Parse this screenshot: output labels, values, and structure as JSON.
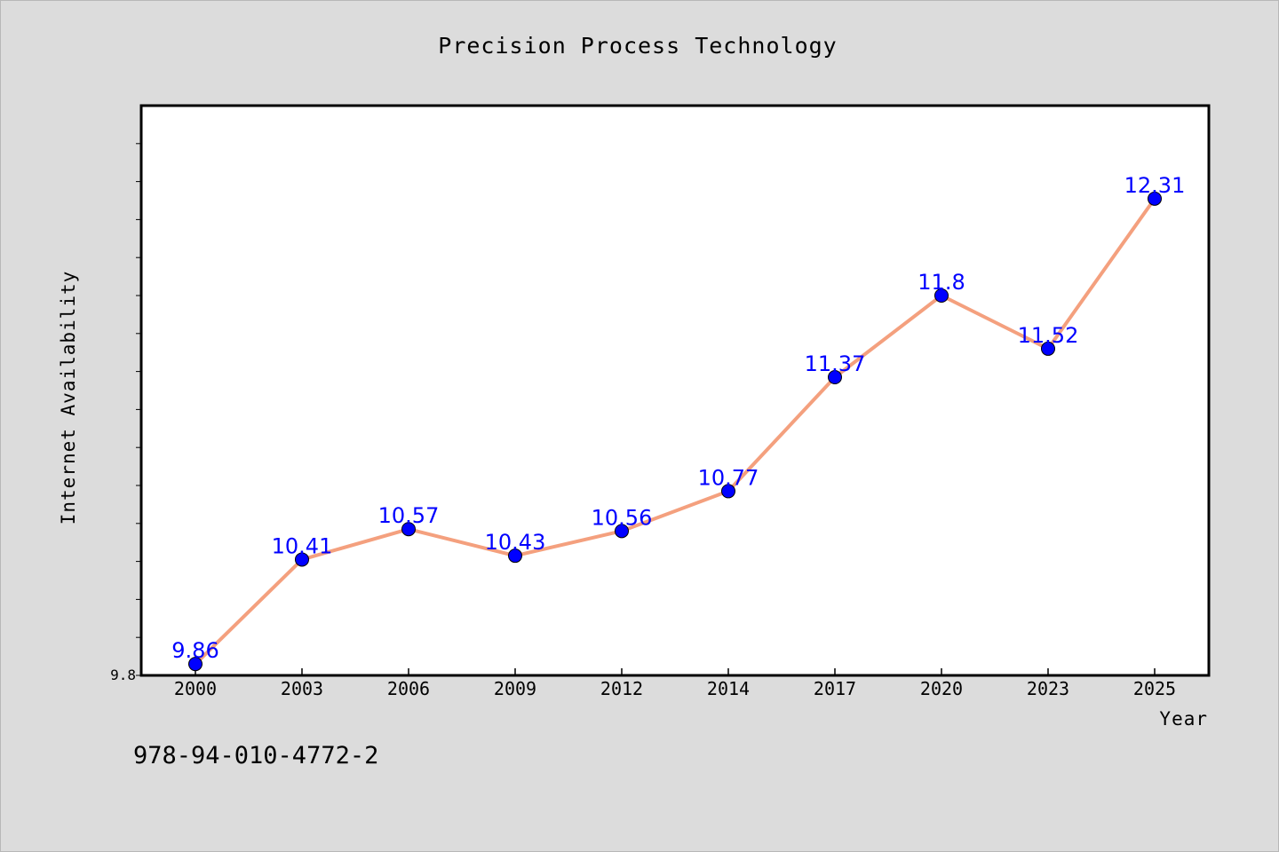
{
  "chart_data": {
    "type": "line",
    "title": "Precision Process Technology",
    "xlabel": "Year",
    "ylabel": "Internet Availability",
    "categories": [
      "2000",
      "2003",
      "2006",
      "2009",
      "2012",
      "2014",
      "2017",
      "2020",
      "2023",
      "2025"
    ],
    "series": [
      {
        "values": [
          9.86,
          10.41,
          10.57,
          10.43,
          10.56,
          10.77,
          11.37,
          11.8,
          11.52,
          12.31
        ],
        "line_color": "#f4a07e",
        "marker_color": "#0000ff"
      }
    ],
    "data_labels": [
      "9.86",
      "10.41",
      "10.57",
      "10.43",
      "10.56",
      "10.77",
      "11.37",
      "11.8",
      "11.52",
      "12.31"
    ],
    "y_tick_labels": [
      "9.8"
    ],
    "ylim": [
      9.8,
      12.8
    ],
    "grid": false,
    "plot_background": "#ffffff",
    "page_background": "#dcdcdc"
  },
  "footer": {
    "code": "978-94-010-4772-2"
  }
}
